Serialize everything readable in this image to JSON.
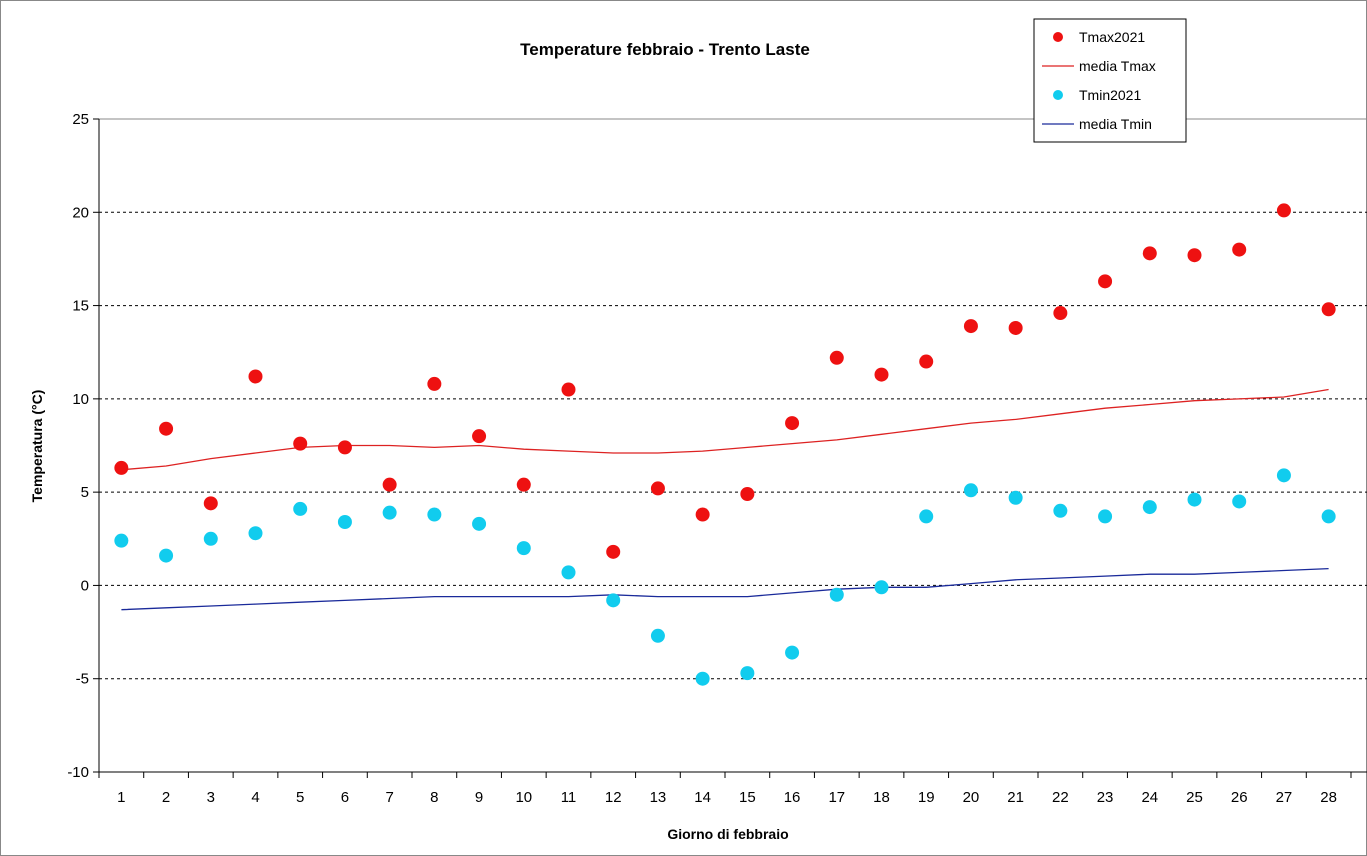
{
  "chart_data": {
    "type": "scatter",
    "title": "Temperature febbraio - Trento Laste",
    "xlabel": "Giorno di febbraio",
    "ylabel": "Temperatura (°C)",
    "x": [
      1,
      2,
      3,
      4,
      5,
      6,
      7,
      8,
      9,
      10,
      11,
      12,
      13,
      14,
      15,
      16,
      17,
      18,
      19,
      20,
      21,
      22,
      23,
      24,
      25,
      26,
      27,
      28
    ],
    "xlim": [
      0.5,
      28.5
    ],
    "ylim": [
      -10,
      25
    ],
    "yticks": [
      -10,
      -5,
      0,
      5,
      10,
      15,
      20,
      25
    ],
    "grid": "horizontal dashed",
    "legend_position": "top-right",
    "series": [
      {
        "name": "Tmax2021",
        "kind": "points",
        "color": "#ee1111",
        "values": [
          6.3,
          8.4,
          4.4,
          11.2,
          7.6,
          7.4,
          5.4,
          10.8,
          8.0,
          5.4,
          10.5,
          1.8,
          5.2,
          3.8,
          4.9,
          8.7,
          12.2,
          11.3,
          12.0,
          13.9,
          13.8,
          14.6,
          16.3,
          17.8,
          17.7,
          18.0,
          20.1,
          14.8
        ]
      },
      {
        "name": "media Tmax",
        "kind": "line",
        "color": "#dd2222",
        "values": [
          6.2,
          6.4,
          6.8,
          7.1,
          7.4,
          7.5,
          7.5,
          7.4,
          7.5,
          7.3,
          7.2,
          7.1,
          7.1,
          7.2,
          7.4,
          7.6,
          7.8,
          8.1,
          8.4,
          8.7,
          8.9,
          9.2,
          9.5,
          9.7,
          9.9,
          10.0,
          10.1,
          10.5
        ]
      },
      {
        "name": "Tmin2021",
        "kind": "points",
        "color": "#11ccee",
        "values": [
          2.4,
          1.6,
          2.5,
          2.8,
          4.1,
          3.4,
          3.9,
          3.8,
          3.3,
          2.0,
          0.7,
          -0.8,
          -2.7,
          -5.0,
          -4.7,
          -3.6,
          -0.5,
          -0.1,
          3.7,
          5.1,
          4.7,
          4.0,
          3.7,
          4.2,
          4.6,
          4.5,
          5.9,
          3.7
        ]
      },
      {
        "name": "media Tmin",
        "kind": "line",
        "color": "#1a2a9a",
        "values": [
          -1.3,
          -1.2,
          -1.1,
          -1.0,
          -0.9,
          -0.8,
          -0.7,
          -0.6,
          -0.6,
          -0.6,
          -0.6,
          -0.5,
          -0.6,
          -0.6,
          -0.6,
          -0.4,
          -0.2,
          -0.1,
          -0.1,
          0.1,
          0.3,
          0.4,
          0.5,
          0.6,
          0.6,
          0.7,
          0.8,
          0.9
        ]
      }
    ]
  }
}
